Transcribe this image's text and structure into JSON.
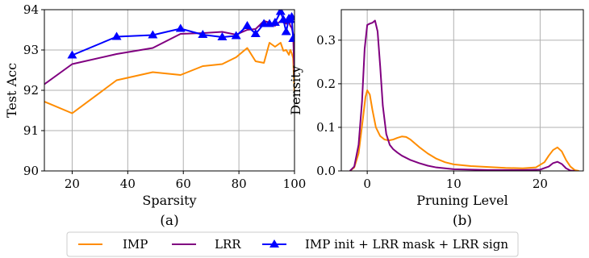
{
  "colors": {
    "imp": "#ff8c00",
    "lrr": "#800080",
    "combo": "#0000ff",
    "grid": "#b0b0b0",
    "axis": "#000000"
  },
  "legend": {
    "position": "bottom-center",
    "entries": [
      {
        "label": "IMP",
        "color": "#ff8c00",
        "marker": "none"
      },
      {
        "label": "LRR",
        "color": "#800080",
        "marker": "none"
      },
      {
        "label": "IMP init + LRR mask + LRR sign",
        "color": "#0000ff",
        "marker": "triangle"
      }
    ]
  },
  "chart_data": [
    {
      "type": "line",
      "caption": "(a)",
      "xlabel": "Sparsity",
      "ylabel": "Test Acc",
      "xlim": [
        10,
        100
      ],
      "ylim": [
        90,
        94
      ],
      "xticks": [
        20,
        40,
        60,
        80,
        100
      ],
      "yticks": [
        90,
        91,
        92,
        93,
        94
      ],
      "grid": true,
      "series": [
        {
          "name": "IMP",
          "color": "#ff8c00",
          "marker": "none",
          "x": [
            10,
            20,
            36,
            49,
            59,
            67,
            74,
            79,
            83,
            86,
            89,
            91,
            93,
            95,
            96,
            97,
            98,
            98.5,
            99,
            99.5,
            100
          ],
          "y": [
            91.72,
            91.43,
            92.25,
            92.45,
            92.38,
            92.6,
            92.65,
            92.82,
            93.05,
            92.72,
            92.68,
            93.18,
            93.08,
            93.18,
            92.98,
            93.0,
            92.88,
            93.0,
            92.92,
            92.8,
            91.95
          ]
        },
        {
          "name": "LRR",
          "color": "#800080",
          "marker": "none",
          "x": [
            10,
            20,
            36,
            49,
            59,
            67,
            74,
            79,
            83,
            86,
            89,
            91,
            93,
            95,
            96,
            97,
            98,
            98.5,
            99,
            99.5,
            100
          ],
          "y": [
            92.15,
            92.65,
            92.9,
            93.05,
            93.4,
            93.42,
            93.45,
            93.38,
            93.5,
            93.52,
            93.72,
            93.68,
            93.6,
            93.72,
            93.68,
            93.65,
            93.7,
            93.6,
            93.55,
            93.4,
            92.35
          ]
        },
        {
          "name": "IMP init + LRR mask + LRR sign",
          "color": "#0000ff",
          "marker": "triangle",
          "x": [
            20,
            36,
            49,
            59,
            67,
            74,
            79,
            83,
            86,
            89,
            91,
            93,
            95,
            96,
            97,
            98,
            98.5,
            99,
            99.5,
            100
          ],
          "y": [
            92.87,
            93.33,
            93.37,
            93.53,
            93.38,
            93.32,
            93.35,
            93.6,
            93.4,
            93.65,
            93.65,
            93.68,
            93.95,
            93.75,
            93.45,
            93.78,
            93.75,
            93.82,
            93.28,
            93.3
          ]
        }
      ]
    },
    {
      "type": "line",
      "caption": "(b)",
      "xlabel": "Pruning Level",
      "ylabel": "Density",
      "xlim": [
        -3,
        25
      ],
      "ylim": [
        0,
        0.37
      ],
      "xticks": [
        0,
        10,
        20
      ],
      "yticks": [
        0.0,
        0.1,
        0.2,
        0.3
      ],
      "grid": true,
      "series": [
        {
          "name": "IMP",
          "color": "#ff8c00",
          "marker": "none",
          "x": [
            -2.0,
            -1.5,
            -1.0,
            -0.5,
            -0.2,
            0.0,
            0.3,
            0.6,
            1.0,
            1.5,
            2.0,
            2.5,
            3.0,
            3.5,
            4.0,
            4.5,
            5.0,
            6.0,
            7.0,
            8.0,
            9.0,
            10.0,
            12.0,
            14.0,
            16.0,
            18.0,
            19.5,
            20.5,
            21.0,
            21.5,
            22.0,
            22.5,
            23.0,
            23.5,
            24.0,
            24.5
          ],
          "y": [
            0.0,
            0.008,
            0.04,
            0.12,
            0.17,
            0.185,
            0.175,
            0.14,
            0.1,
            0.08,
            0.072,
            0.07,
            0.072,
            0.076,
            0.079,
            0.078,
            0.072,
            0.055,
            0.04,
            0.028,
            0.02,
            0.015,
            0.011,
            0.009,
            0.007,
            0.006,
            0.008,
            0.02,
            0.035,
            0.048,
            0.054,
            0.045,
            0.025,
            0.01,
            0.002,
            0.0
          ]
        },
        {
          "name": "LRR",
          "color": "#800080",
          "marker": "none",
          "x": [
            -2.0,
            -1.5,
            -1.0,
            -0.6,
            -0.3,
            0.0,
            0.3,
            0.6,
            0.9,
            1.2,
            1.5,
            1.8,
            2.2,
            2.6,
            3.0,
            3.5,
            4.0,
            5.0,
            6.0,
            7.0,
            8.0,
            10.0,
            12.0,
            14.0,
            16.0,
            18.0,
            20.0,
            21.0,
            21.5,
            22.0,
            22.5,
            23.0,
            23.5,
            24.0
          ],
          "y": [
            0.0,
            0.01,
            0.06,
            0.16,
            0.28,
            0.335,
            0.338,
            0.34,
            0.345,
            0.32,
            0.24,
            0.15,
            0.085,
            0.06,
            0.05,
            0.042,
            0.035,
            0.025,
            0.018,
            0.012,
            0.008,
            0.004,
            0.003,
            0.002,
            0.002,
            0.002,
            0.003,
            0.01,
            0.018,
            0.021,
            0.016,
            0.006,
            0.001,
            0.0
          ]
        }
      ]
    }
  ]
}
